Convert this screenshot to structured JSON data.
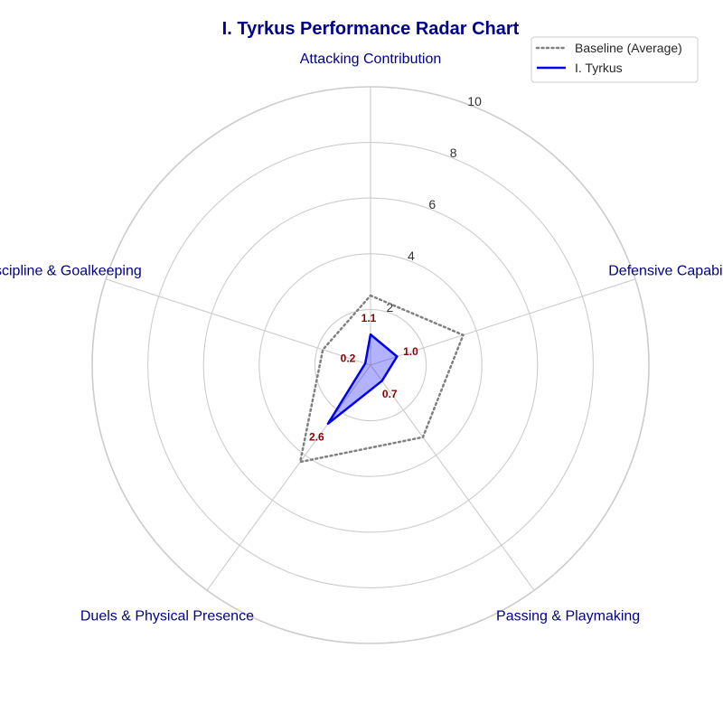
{
  "chart_data": {
    "type": "radar",
    "title": "I. Tyrkus Performance Radar Chart",
    "categories": [
      "Attacking Contribution",
      "Defensive Capability",
      "Passing & Playmaking",
      "Duels & Physical Presence",
      "Discipline & Goalkeeping"
    ],
    "rlim": [
      0,
      10
    ],
    "rticks": [
      "2",
      "4",
      "6",
      "8",
      "10"
    ],
    "rtick_values": [
      2,
      4,
      6,
      8,
      10
    ],
    "grid": true,
    "legend_position": "top-right",
    "series": [
      {
        "name": "Baseline (Average)",
        "values": [
          2.5,
          3.5,
          3.2,
          4.3,
          1.8
        ],
        "color": "#808080",
        "line_style": "dotted",
        "filled": false
      },
      {
        "name": "I. Tyrkus",
        "values": [
          1.1,
          1.0,
          0.7,
          2.6,
          0.2
        ],
        "value_labels": [
          "1.1",
          "1.0",
          "0.7",
          "2.6",
          "0.2"
        ],
        "color": "#0000ee",
        "fill_color": "#0000ff",
        "line_style": "solid",
        "filled": true
      }
    ]
  },
  "colors": {
    "title": "#00008b",
    "axis_label": "#00008b",
    "value_label": "#8b0000",
    "grid": "#cccccc"
  }
}
